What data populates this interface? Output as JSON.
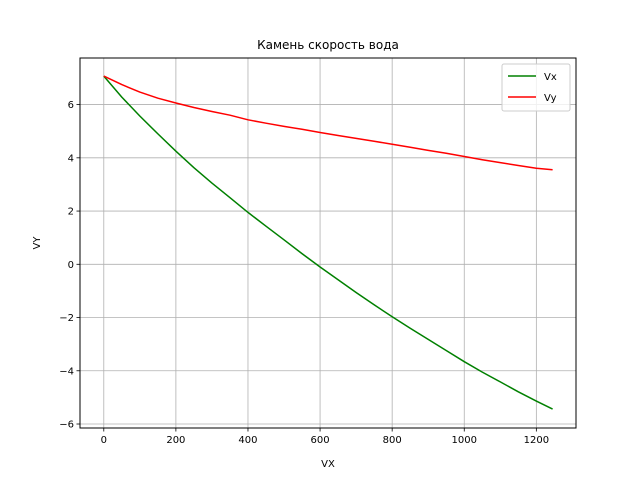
{
  "chart_data": {
    "type": "line",
    "title": "Камень скорость вода",
    "xlabel": "VX",
    "ylabel": "VY",
    "xlim": [
      -66,
      1310
    ],
    "ylim": [
      -6.15,
      7.75
    ],
    "xticks": [
      0,
      200,
      400,
      600,
      800,
      1000,
      1200
    ],
    "yticks": [
      -6,
      -4,
      -2,
      0,
      2,
      4,
      6
    ],
    "grid": true,
    "legend_position": "top-right",
    "series": [
      {
        "name": "Vx",
        "color": "#008000",
        "x": [
          0,
          50,
          100,
          150,
          200,
          250,
          300,
          350,
          400,
          450,
          500,
          550,
          600,
          650,
          700,
          750,
          800,
          850,
          900,
          950,
          1000,
          1050,
          1100,
          1150,
          1200,
          1245
        ],
        "y": [
          7.07,
          6.28,
          5.57,
          4.9,
          4.25,
          3.63,
          3.05,
          2.5,
          1.95,
          1.43,
          0.92,
          0.4,
          -0.1,
          -0.58,
          -1.06,
          -1.52,
          -1.97,
          -2.4,
          -2.82,
          -3.24,
          -3.66,
          -4.05,
          -4.42,
          -4.79,
          -5.14,
          -5.44
        ]
      },
      {
        "name": "Vy",
        "color": "#ff0000",
        "x": [
          0,
          50,
          100,
          150,
          200,
          250,
          300,
          350,
          400,
          450,
          500,
          550,
          600,
          650,
          700,
          750,
          800,
          850,
          900,
          950,
          1000,
          1050,
          1100,
          1150,
          1200,
          1245
        ],
        "y": [
          7.07,
          6.75,
          6.47,
          6.24,
          6.06,
          5.89,
          5.74,
          5.6,
          5.43,
          5.3,
          5.18,
          5.07,
          4.95,
          4.84,
          4.73,
          4.62,
          4.51,
          4.4,
          4.28,
          4.17,
          4.05,
          3.93,
          3.82,
          3.71,
          3.61,
          3.55
        ]
      }
    ]
  }
}
